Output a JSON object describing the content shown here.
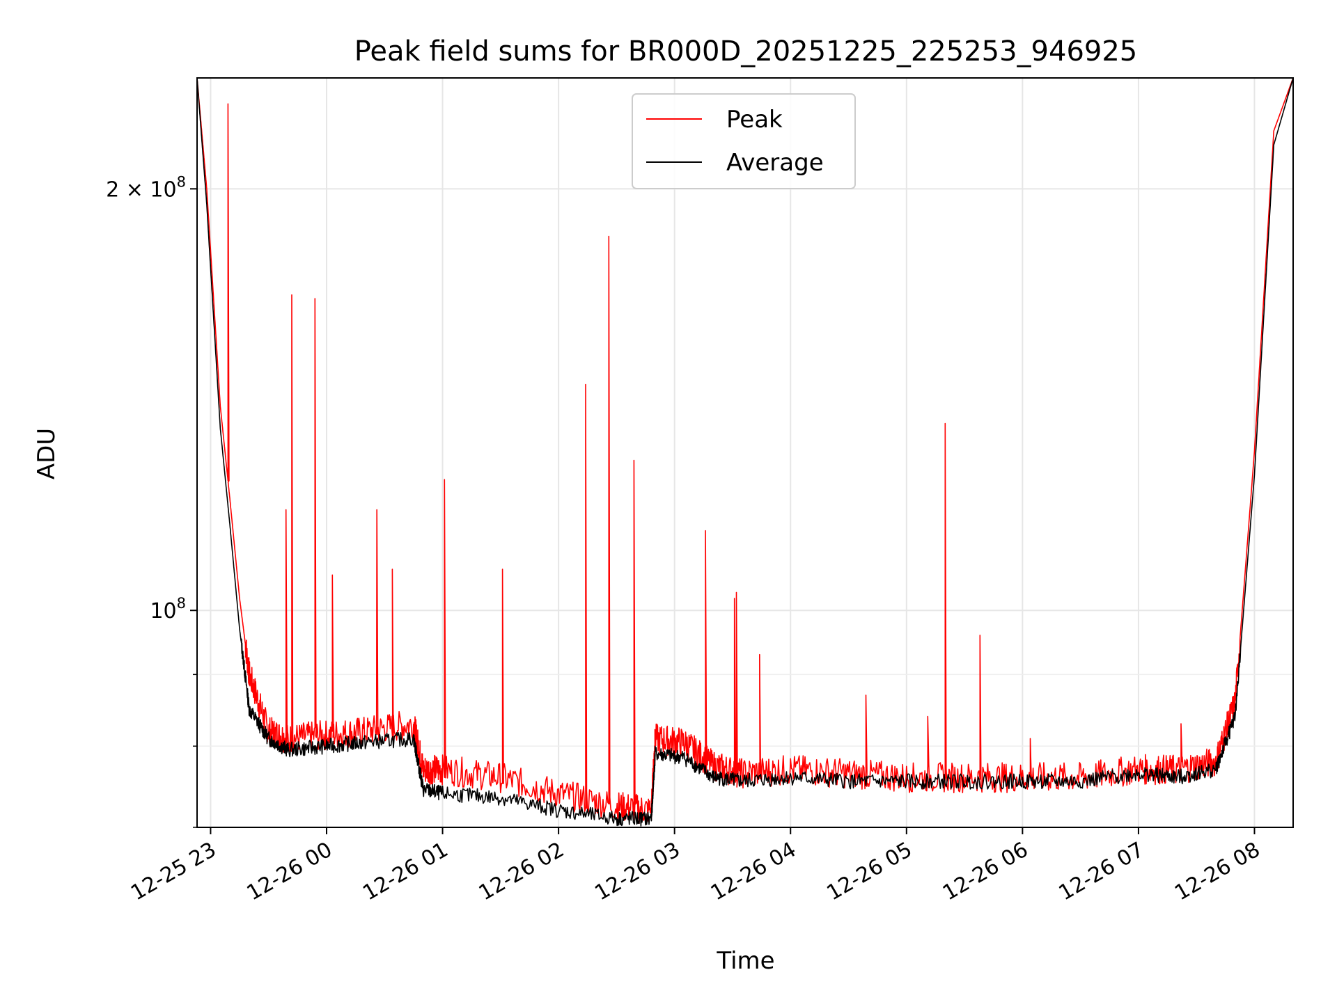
{
  "chart_data": {
    "type": "line",
    "title": "Peak field sums for BR000D_20251225_225253_946925",
    "xlabel": "Time",
    "ylabel": "ADU",
    "yscale": "log",
    "xlim": [
      "2025-12-25 22:53",
      "2025-12-26 08:20"
    ],
    "ylim": [
      70000000,
      240000000
    ],
    "x_ticks": [
      "12-25 23",
      "12-26 00",
      "12-26 01",
      "12-26 02",
      "12-26 03",
      "12-26 04",
      "12-26 05",
      "12-26 06",
      "12-26 07",
      "12-26 08"
    ],
    "y_ticks": [
      "2 × 10^8",
      "10^8"
    ],
    "grid": true,
    "legend_position": "top-center",
    "series": [
      {
        "name": "Peak",
        "color": "#ff0000",
        "x": [
          "2025-12-25 22:53",
          "2025-12-25 22:58",
          "2025-12-25 23:05",
          "2025-12-25 23:10",
          "2025-12-25 23:15",
          "2025-12-25 23:20",
          "2025-12-25 23:30",
          "2025-12-25 23:40",
          "2025-12-26 00:00",
          "2025-12-26 00:20",
          "2025-12-26 00:45",
          "2025-12-26 00:50",
          "2025-12-26 01:00",
          "2025-12-26 01:30",
          "2025-12-26 02:00",
          "2025-12-26 02:30",
          "2025-12-26 02:48",
          "2025-12-26 02:50",
          "2025-12-26 03:05",
          "2025-12-26 03:20",
          "2025-12-26 03:35",
          "2025-12-26 04:00",
          "2025-12-26 04:30",
          "2025-12-26 05:00",
          "2025-12-26 05:30",
          "2025-12-26 06:00",
          "2025-12-26 06:30",
          "2025-12-26 07:00",
          "2025-12-26 07:20",
          "2025-12-26 07:40",
          "2025-12-26 07:50",
          "2025-12-26 08:00",
          "2025-12-26 08:10",
          "2025-12-26 08:20"
        ],
        "y": [
          240000000,
          200000000,
          140000000,
          120000000,
          102000000,
          90000000,
          82000000,
          81000000,
          81500000,
          82000000,
          83000000,
          77000000,
          77000000,
          76000000,
          74000000,
          72500000,
          72000000,
          81000000,
          80500000,
          77500000,
          76500000,
          77000000,
          76500000,
          76000000,
          76000000,
          76000000,
          76000000,
          77000000,
          77000000,
          78000000,
          86000000,
          130000000,
          220000000,
          240000000
        ],
        "spikes": [
          {
            "x": "2025-12-25 23:09",
            "y": 230000000
          },
          {
            "x": "2025-12-25 23:39",
            "y": 118000000
          },
          {
            "x": "2025-12-25 23:42",
            "y": 168000000
          },
          {
            "x": "2025-12-25 23:54",
            "y": 167000000
          },
          {
            "x": "2025-12-26 00:03",
            "y": 106000000
          },
          {
            "x": "2025-12-26 00:26",
            "y": 118000000
          },
          {
            "x": "2025-12-26 00:34",
            "y": 107000000
          },
          {
            "x": "2025-12-26 01:01",
            "y": 124000000
          },
          {
            "x": "2025-12-26 01:31",
            "y": 107000000
          },
          {
            "x": "2025-12-26 02:14",
            "y": 145000000
          },
          {
            "x": "2025-12-26 02:26",
            "y": 185000000
          },
          {
            "x": "2025-12-26 02:39",
            "y": 128000000
          },
          {
            "x": "2025-12-26 03:16",
            "y": 114000000
          },
          {
            "x": "2025-12-26 03:31",
            "y": 102000000
          },
          {
            "x": "2025-12-26 03:32",
            "y": 103000000
          },
          {
            "x": "2025-12-26 03:44",
            "y": 93000000
          },
          {
            "x": "2025-12-26 04:39",
            "y": 87000000
          },
          {
            "x": "2025-12-26 05:11",
            "y": 84000000
          },
          {
            "x": "2025-12-26 05:20",
            "y": 136000000
          },
          {
            "x": "2025-12-26 05:38",
            "y": 96000000
          },
          {
            "x": "2025-12-26 06:04",
            "y": 81000000
          },
          {
            "x": "2025-12-26 07:22",
            "y": 83000000
          }
        ]
      },
      {
        "name": "Average",
        "color": "#000000",
        "x": [
          "2025-12-25 22:53",
          "2025-12-25 22:58",
          "2025-12-25 23:05",
          "2025-12-25 23:10",
          "2025-12-25 23:15",
          "2025-12-25 23:20",
          "2025-12-25 23:30",
          "2025-12-25 23:40",
          "2025-12-26 00:00",
          "2025-12-26 00:20",
          "2025-12-26 00:45",
          "2025-12-26 00:50",
          "2025-12-26 01:00",
          "2025-12-26 01:30",
          "2025-12-26 02:00",
          "2025-12-26 02:30",
          "2025-12-26 02:48",
          "2025-12-26 02:50",
          "2025-12-26 03:05",
          "2025-12-26 03:20",
          "2025-12-26 03:35",
          "2025-12-26 04:00",
          "2025-12-26 04:30",
          "2025-12-26 05:00",
          "2025-12-26 05:30",
          "2025-12-26 06:00",
          "2025-12-26 06:30",
          "2025-12-26 07:00",
          "2025-12-26 07:20",
          "2025-12-26 07:40",
          "2025-12-26 07:50",
          "2025-12-26 08:00",
          "2025-12-26 08:10",
          "2025-12-26 08:20"
        ],
        "y": [
          240000000,
          195000000,
          135000000,
          115000000,
          97000000,
          85000000,
          81000000,
          79500000,
          80000000,
          80500000,
          81000000,
          74500000,
          74000000,
          73500000,
          72000000,
          71000000,
          71000000,
          79000000,
          78500000,
          76000000,
          75500000,
          76000000,
          75500000,
          75500000,
          75500000,
          75500000,
          75500000,
          76500000,
          76000000,
          77000000,
          84000000,
          125000000,
          215000000,
          240000000
        ]
      }
    ]
  }
}
